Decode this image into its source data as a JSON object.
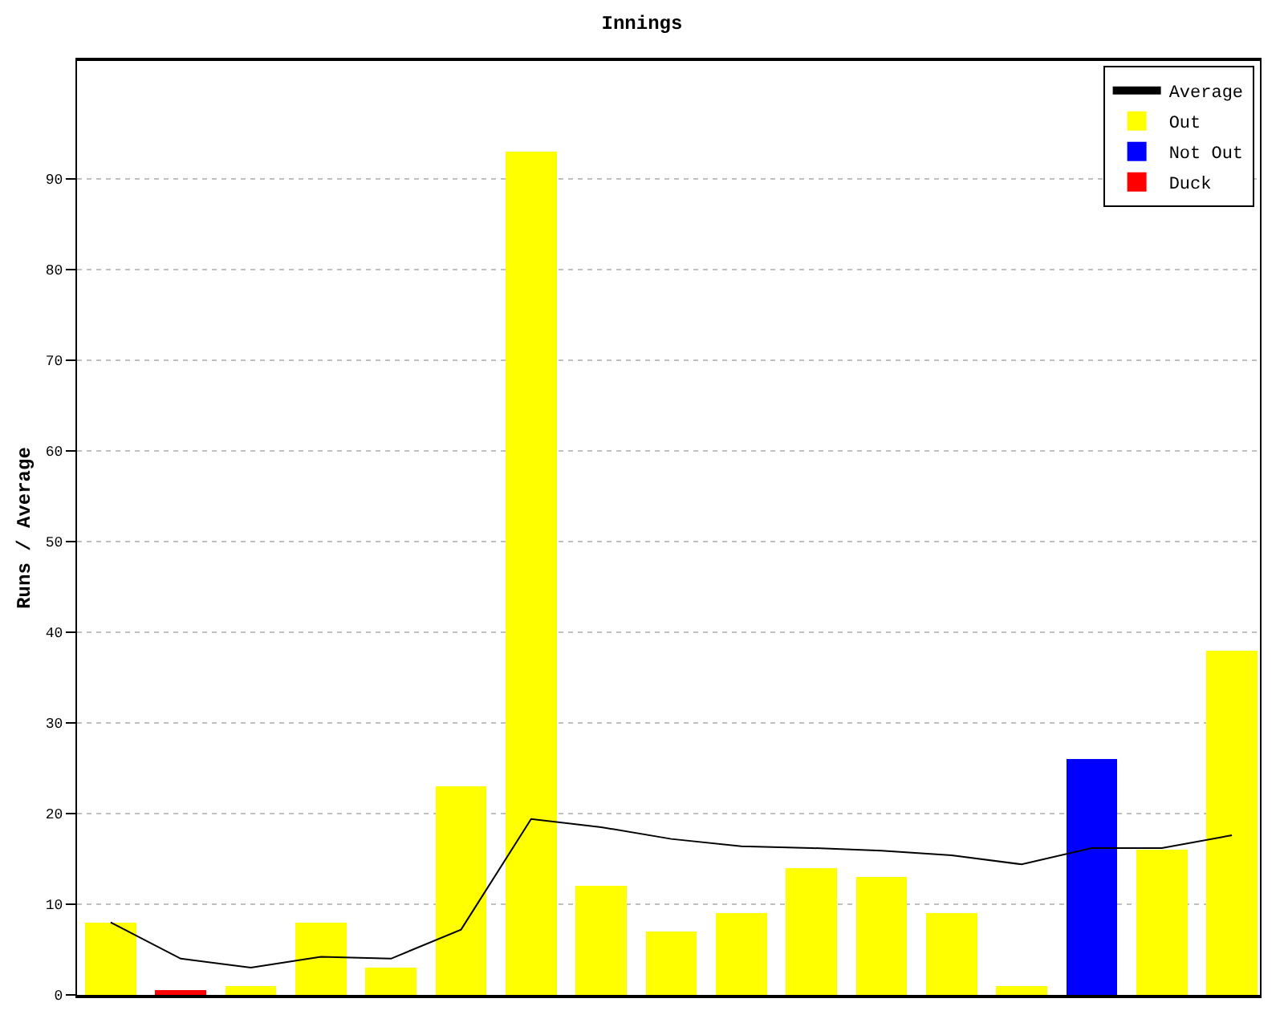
{
  "chart_data": {
    "type": "bar",
    "title": "Innings",
    "ylabel": "Runs / Average",
    "categories": [
      null,
      null,
      null,
      null,
      null,
      null,
      null,
      null,
      null,
      null,
      null,
      null,
      null,
      null,
      null,
      null,
      null
    ],
    "series": [
      {
        "name": "Average",
        "type": "line",
        "color": "#000000",
        "values": [
          8,
          4,
          3,
          4.2,
          4,
          7.2,
          19.4,
          18.5,
          17.2,
          16.4,
          16.2,
          15.9,
          15.4,
          14.4,
          16.2,
          16.2,
          17.6
        ]
      },
      {
        "name": "Out",
        "color": "#ffff00",
        "values": [
          8,
          null,
          1,
          8,
          3,
          23,
          93,
          12,
          7,
          9,
          14,
          13,
          9,
          1,
          null,
          16,
          38
        ]
      },
      {
        "name": "Not Out",
        "color": "#0000ff",
        "values": [
          null,
          null,
          null,
          null,
          null,
          null,
          null,
          null,
          null,
          null,
          null,
          null,
          null,
          null,
          26,
          null,
          null
        ]
      },
      {
        "name": "Duck",
        "color": "#ff0000",
        "values": [
          null,
          0.5,
          null,
          null,
          null,
          null,
          null,
          null,
          null,
          null,
          null,
          null,
          null,
          null,
          null,
          null,
          null
        ]
      }
    ],
    "stacked": true,
    "ylim": [
      0,
      103
    ],
    "yticks": [
      0,
      10,
      20,
      30,
      40,
      50,
      60,
      70,
      80,
      90
    ],
    "grid": "y",
    "legend": "top right",
    "tick_labels": "y",
    "marker": "none",
    "line_style": "solid"
  }
}
